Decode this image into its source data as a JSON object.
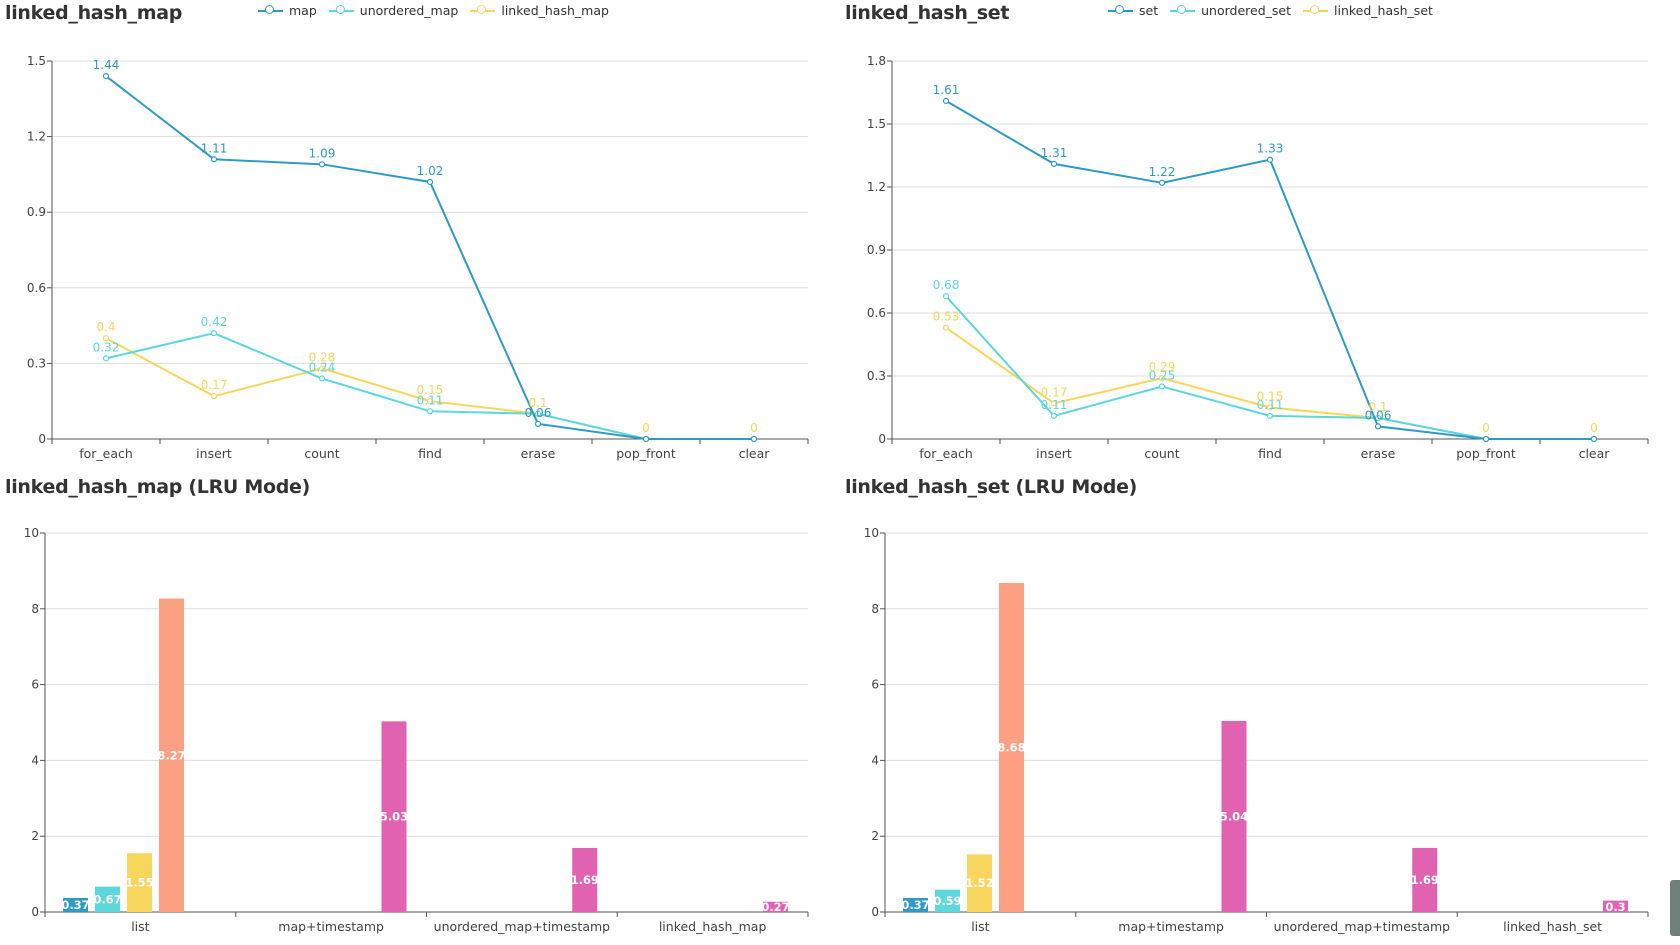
{
  "colors": {
    "blue": "#2f9bc4",
    "cyan": "#5dd6dc",
    "yellow": "#f8d55c",
    "orange": "#fba083",
    "pink": "#e062b0"
  },
  "charts": [
    {
      "title": "linked_hash_map",
      "chart_data": {
        "type": "line",
        "categories": [
          "for_each",
          "insert",
          "count",
          "find",
          "erase",
          "pop_front",
          "clear"
        ],
        "ylim": [
          0,
          1.5
        ],
        "yticks": [
          "0",
          "0.3",
          "0.6",
          "0.9",
          "1.2",
          "1.5"
        ],
        "legend_position": "top-center",
        "grid": true,
        "series": [
          {
            "name": "map",
            "color": "blue",
            "values": [
              1.44,
              1.11,
              1.09,
              1.02,
              0.06,
              0,
              0
            ],
            "labels": [
              "1.44",
              "1.11",
              "1.09",
              "1.02",
              "0.06",
              "",
              ""
            ]
          },
          {
            "name": "unordered_map",
            "color": "cyan",
            "values": [
              0.32,
              0.42,
              0.24,
              0.11,
              0.1,
              0,
              0
            ],
            "labels": [
              "0.32",
              "0.42",
              "0.24",
              "0.11",
              "",
              "",
              ""
            ]
          },
          {
            "name": "linked_hash_map",
            "color": "yellow",
            "values": [
              0.4,
              0.17,
              0.28,
              0.15,
              0.1,
              0,
              0
            ],
            "labels": [
              "0.4",
              "0.17",
              "0.28",
              "0.15",
              "0.1",
              "0",
              "0"
            ]
          }
        ]
      }
    },
    {
      "title": "linked_hash_set",
      "chart_data": {
        "type": "line",
        "categories": [
          "for_each",
          "insert",
          "count",
          "find",
          "erase",
          "pop_front",
          "clear"
        ],
        "ylim": [
          0,
          1.8
        ],
        "yticks": [
          "0",
          "0.3",
          "0.6",
          "0.9",
          "1.2",
          "1.5",
          "1.8"
        ],
        "legend_position": "top-center",
        "grid": true,
        "series": [
          {
            "name": "set",
            "color": "blue",
            "values": [
              1.61,
              1.31,
              1.22,
              1.33,
              0.06,
              0,
              0
            ],
            "labels": [
              "1.61",
              "1.31",
              "1.22",
              "1.33",
              "0.06",
              "",
              ""
            ]
          },
          {
            "name": "unordered_set",
            "color": "cyan",
            "values": [
              0.68,
              0.11,
              0.25,
              0.11,
              0.1,
              0,
              0
            ],
            "labels": [
              "0.68",
              "0.11",
              "0.25",
              "0.11",
              "",
              "",
              ""
            ]
          },
          {
            "name": "linked_hash_set",
            "color": "yellow",
            "values": [
              0.53,
              0.17,
              0.29,
              0.15,
              0.1,
              0,
              0
            ],
            "labels": [
              "0.53",
              "0.17",
              "0.29",
              "0.15",
              "0.1",
              "0",
              "0"
            ]
          }
        ]
      }
    },
    {
      "title": "linked_hash_map (LRU Mode)",
      "chart_data": {
        "type": "bar",
        "categories": [
          "list",
          "map+timestamp",
          "unordered_map+timestamp",
          "linked_hash_map"
        ],
        "ylim": [
          0,
          10
        ],
        "yticks": [
          "0",
          "2",
          "4",
          "6",
          "8",
          "10"
        ],
        "grid": true,
        "groups": [
          {
            "bars": [
              {
                "value": 0.37,
                "label": "0.37",
                "color": "blue"
              },
              {
                "value": 0.67,
                "label": "0.67",
                "color": "cyan"
              },
              {
                "value": 1.55,
                "label": "1.55",
                "color": "yellow"
              },
              {
                "value": 8.27,
                "label": "8.27",
                "color": "orange"
              }
            ]
          },
          {
            "bars": [
              {
                "value": 5.03,
                "label": "5.03",
                "color": "pink"
              }
            ]
          },
          {
            "bars": [
              {
                "value": 1.69,
                "label": "1.69",
                "color": "pink"
              }
            ]
          },
          {
            "bars": [
              {
                "value": 0.27,
                "label": "0.27",
                "color": "pink"
              }
            ]
          }
        ]
      }
    },
    {
      "title": "linked_hash_set (LRU Mode)",
      "chart_data": {
        "type": "bar",
        "categories": [
          "list",
          "map+timestamp",
          "unordered_map+timestamp",
          "linked_hash_set"
        ],
        "ylim": [
          0,
          10
        ],
        "yticks": [
          "0",
          "2",
          "4",
          "6",
          "8",
          "10"
        ],
        "grid": true,
        "groups": [
          {
            "bars": [
              {
                "value": 0.37,
                "label": "0.37",
                "color": "blue"
              },
              {
                "value": 0.59,
                "label": "0.59",
                "color": "cyan"
              },
              {
                "value": 1.52,
                "label": "1.52",
                "color": "yellow"
              },
              {
                "value": 8.68,
                "label": "8.68",
                "color": "orange"
              }
            ]
          },
          {
            "bars": [
              {
                "value": 5.04,
                "label": "5.04",
                "color": "pink"
              }
            ]
          },
          {
            "bars": [
              {
                "value": 1.69,
                "label": "1.69",
                "color": "pink"
              }
            ]
          },
          {
            "bars": [
              {
                "value": 0.3,
                "label": "0.3",
                "color": "pink"
              }
            ]
          }
        ]
      }
    }
  ]
}
